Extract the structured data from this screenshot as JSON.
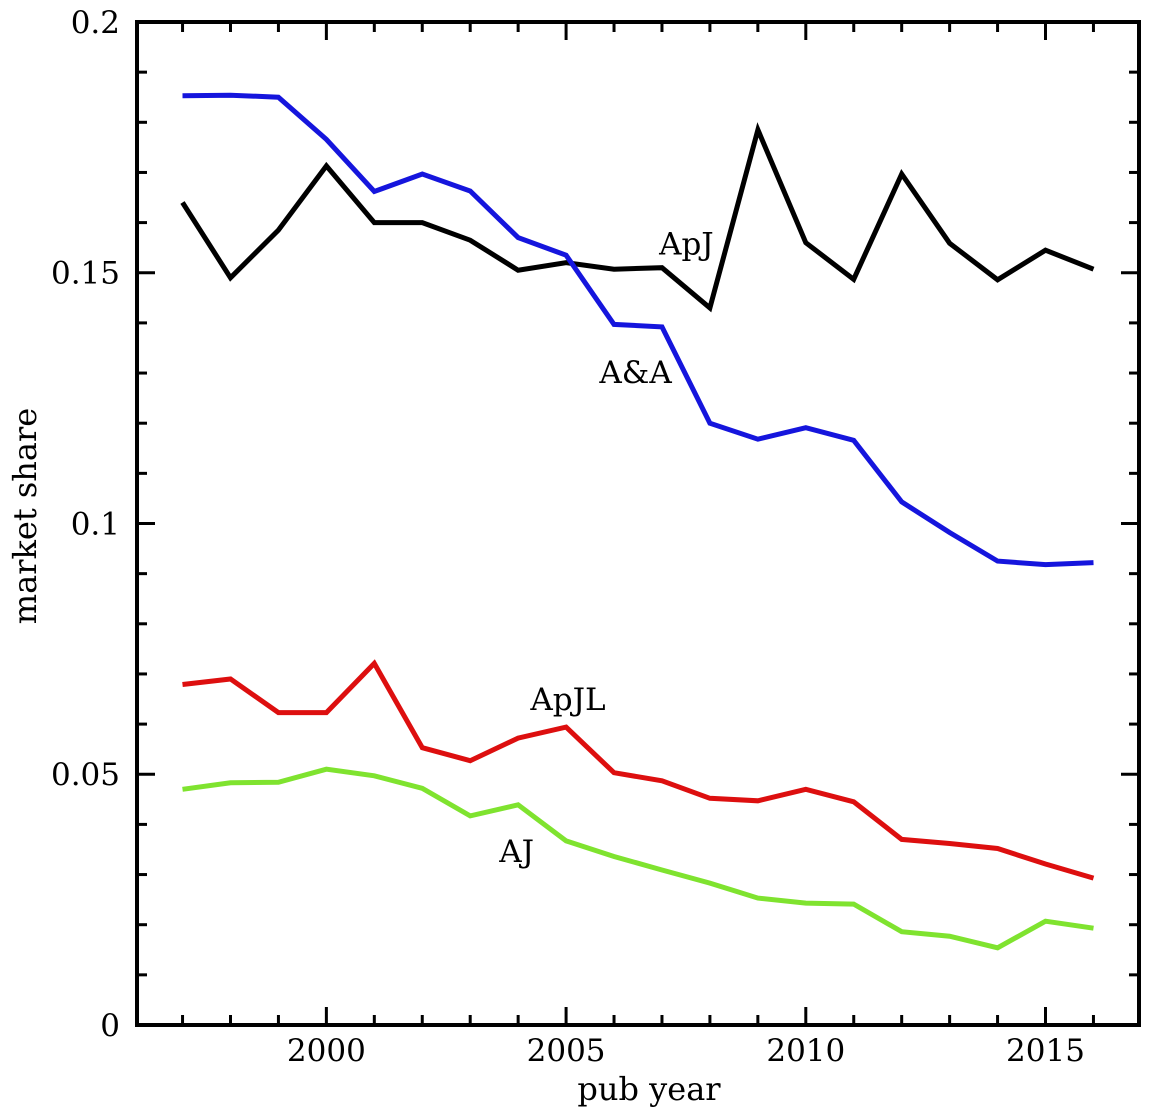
{
  "figure": {
    "background": "#ffffff",
    "frame_color": "#000000"
  },
  "chart_data": {
    "type": "line",
    "title": "",
    "xlabel": "pub year",
    "ylabel": "market share",
    "xlim": [
      1996.05,
      2016.95
    ],
    "ylim": [
      0,
      0.2
    ],
    "grid": false,
    "legend": "inline-curve-labels",
    "x_major_ticks": [
      2000,
      2005,
      2010,
      2015
    ],
    "x_tick_labels": [
      "2000",
      "2005",
      "2010",
      "2015"
    ],
    "x_minor_tick_step": 1,
    "y_major_ticks": [
      0,
      0.05,
      0.1,
      0.15,
      0.2
    ],
    "y_tick_labels": [
      "0",
      "0.05",
      "0.1",
      "0.15",
      "0.2"
    ],
    "y_minor_tick_step": 0.01,
    "x": [
      1997,
      1998,
      1999,
      2000,
      2001,
      2002,
      2003,
      2004,
      2005,
      2006,
      2007,
      2008,
      2009,
      2010,
      2011,
      2012,
      2013,
      2014,
      2015,
      2016
    ],
    "series": [
      {
        "name": "ApJ",
        "color": "#000000",
        "label_pos": {
          "x": 2007.51,
          "y": 0.1558
        },
        "values": [
          0.164,
          0.149,
          0.1585,
          0.1713,
          0.16,
          0.16,
          0.1565,
          0.1505,
          0.152,
          0.1507,
          0.151,
          0.143,
          0.1785,
          0.156,
          0.1487,
          0.1697,
          0.1559,
          0.1486,
          0.1545,
          0.1507
        ]
      },
      {
        "name": "A&A",
        "color": "#1515dd",
        "label_pos": {
          "x": 2006.45,
          "y": 0.1302
        },
        "values": [
          0.1853,
          0.1854,
          0.185,
          0.1766,
          0.1662,
          0.1697,
          0.1663,
          0.157,
          0.1535,
          0.1397,
          0.1392,
          0.12,
          0.1168,
          0.1191,
          0.1166,
          0.1043,
          0.0982,
          0.0925,
          0.0918,
          0.0922
        ]
      },
      {
        "name": "ApJL",
        "color": "#dd0f0f",
        "label_pos": {
          "x": 2005.04,
          "y": 0.065
        },
        "values": [
          0.0679,
          0.069,
          0.0623,
          0.0623,
          0.0721,
          0.0553,
          0.0527,
          0.0572,
          0.0594,
          0.0503,
          0.0487,
          0.0452,
          0.0447,
          0.047,
          0.0445,
          0.037,
          0.0362,
          0.0352,
          0.0321,
          0.0293
        ]
      },
      {
        "name": "AJ",
        "color": "#7fe32f",
        "label_pos": {
          "x": 2003.97,
          "y": 0.0347
        },
        "values": [
          0.047,
          0.0483,
          0.0484,
          0.051,
          0.0497,
          0.0472,
          0.0417,
          0.0439,
          0.0367,
          0.0336,
          0.0309,
          0.0283,
          0.0253,
          0.0243,
          0.0241,
          0.0186,
          0.0177,
          0.0154,
          0.0207,
          0.0193
        ]
      }
    ]
  }
}
